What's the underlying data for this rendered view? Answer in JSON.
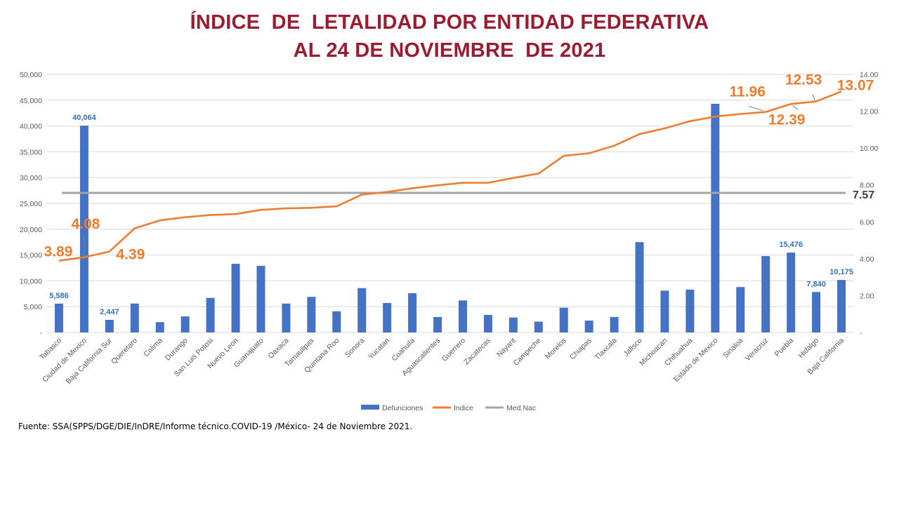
{
  "title": {
    "line1": "ÍNDICE  DE  LETALIDAD POR ENTIDAD FEDERATIVA",
    "line2": "AL 24 DE NOVIEMBRE  DE 2021"
  },
  "source": "Fuente: SSA(SPPS/DGE/DIE/InDRE/Informe técnico.COVID-19 /México- 24 de Noviembre 2021.",
  "colors": {
    "title": "#9b1b30",
    "bars": "#4472c4",
    "bar_labels": "#2e75b6",
    "index_line": "#ed7d31",
    "national_line": "#a5a5a5",
    "axis_text": "#595959",
    "gridline": "#d9d9d9",
    "national_label": "#404040"
  },
  "chart_data": {
    "type": "bar",
    "categories": [
      "Tabasco",
      "Ciudad de Mexico",
      "Baja California Sur",
      "Queretaro",
      "Colima",
      "Durango",
      "San Luis Potosi",
      "Nuevo Leon",
      "Guanajuato",
      "Oaxaca",
      "Tamaulipas",
      "Quintana Roo",
      "Sonora",
      "Yucatan",
      "Coahuila",
      "Aguascalientes",
      "Guerrero",
      "Zacatecas",
      "Nayarit",
      "Campeche",
      "Morelos",
      "Chiapas",
      "Tlaxcala",
      "Jalisco",
      "Michoacan",
      "Chihuahua",
      "Estado de Mexico",
      "Sinaloa",
      "Veracruz",
      "Puebla",
      "Hidalgo",
      "Baja California"
    ],
    "series": [
      {
        "name": "Defunciones",
        "type": "bar",
        "axis": "left",
        "values": [
          5586,
          40064,
          2447,
          5600,
          2000,
          3100,
          6700,
          13300,
          12900,
          5600,
          6900,
          4100,
          8600,
          5700,
          7600,
          3000,
          6200,
          3400,
          2900,
          2100,
          4800,
          2300,
          3000,
          17500,
          8100,
          8300,
          44300,
          8800,
          14800,
          15476,
          7840,
          10175
        ]
      },
      {
        "name": "Indice",
        "type": "line",
        "axis": "right",
        "values": [
          3.89,
          4.08,
          4.39,
          5.65,
          6.08,
          6.25,
          6.37,
          6.42,
          6.65,
          6.73,
          6.76,
          6.84,
          7.48,
          7.62,
          7.82,
          7.98,
          8.12,
          8.12,
          8.38,
          8.62,
          9.58,
          9.72,
          10.13,
          10.76,
          11.07,
          11.46,
          11.71,
          11.85,
          11.96,
          12.39,
          12.53,
          13.07
        ]
      },
      {
        "name": "Med.Nac",
        "type": "line",
        "axis": "right",
        "values": [
          7.57,
          7.57,
          7.57,
          7.57,
          7.57,
          7.57,
          7.57,
          7.57,
          7.57,
          7.57,
          7.57,
          7.57,
          7.57,
          7.57,
          7.57,
          7.57,
          7.57,
          7.57,
          7.57,
          7.57,
          7.57,
          7.57,
          7.57,
          7.57,
          7.57,
          7.57,
          7.57,
          7.57,
          7.57,
          7.57,
          7.57,
          7.57
        ]
      }
    ],
    "ylim_left": [
      0,
      50000
    ],
    "ylim_right": [
      0,
      14
    ],
    "yticks_left": [
      "-",
      "5,000",
      "10,000",
      "15,000",
      "20,000",
      "25,000",
      "30,000",
      "35,000",
      "40,000",
      "45,000",
      "50,000"
    ],
    "yticks_right": [
      "-",
      "2.00",
      "4.00",
      "6.00",
      "8.00",
      "10.00",
      "12.00",
      "14.00"
    ],
    "bar_labels": [
      {
        "index": 0,
        "text": "5,586"
      },
      {
        "index": 1,
        "text": "40,064"
      },
      {
        "index": 2,
        "text": "2,447"
      },
      {
        "index": 29,
        "text": "15,476"
      },
      {
        "index": 30,
        "text": "7,840"
      },
      {
        "index": 31,
        "text": "10,175"
      }
    ],
    "line_labels": [
      {
        "index": 0,
        "text": "3.89"
      },
      {
        "index": 1,
        "text": "4.08"
      },
      {
        "index": 2,
        "text": "4.39"
      },
      {
        "index": 28,
        "text": "11.96"
      },
      {
        "index": 29,
        "text": "12.39"
      },
      {
        "index": 30,
        "text": "12.53"
      },
      {
        "index": 31,
        "text": "13.07"
      }
    ],
    "national_label": "7.57",
    "legend_position": "bottom",
    "grid": true
  }
}
